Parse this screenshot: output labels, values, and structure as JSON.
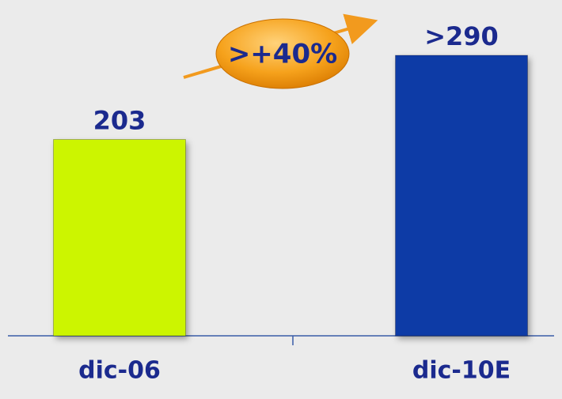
{
  "chart_data": {
    "type": "bar",
    "categories": [
      "dic-06",
      "dic-10E"
    ],
    "values": [
      203,
      290
    ],
    "value_labels": [
      "203",
      ">290"
    ],
    "colors": [
      "#ccf500",
      "#0b3aa6"
    ],
    "annotation": ">+40%"
  }
}
